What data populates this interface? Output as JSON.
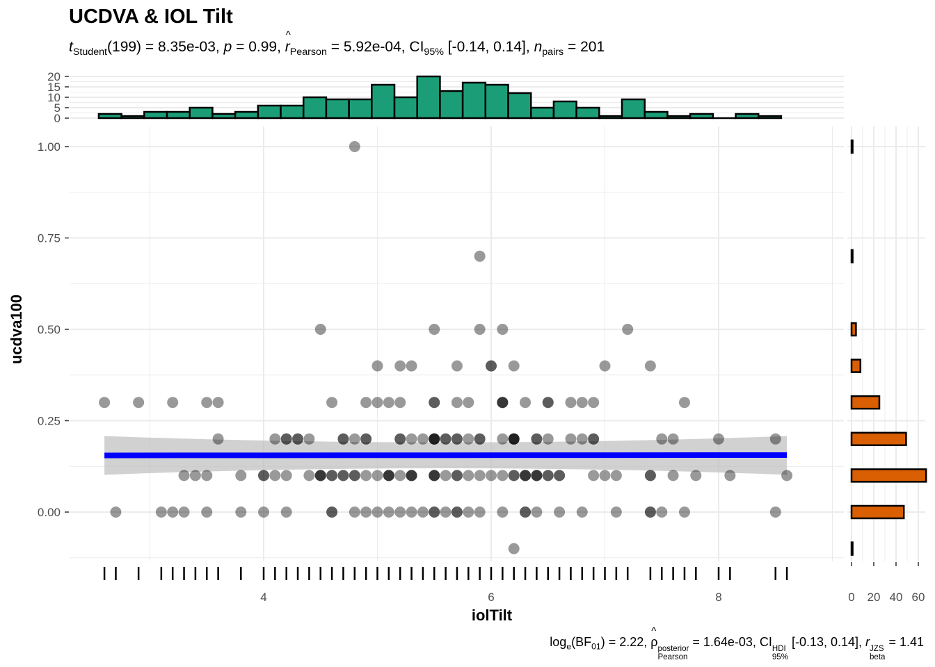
{
  "title": "UCDVA & IOL Tilt",
  "subtitle": {
    "t_letter": "t",
    "t_sub": "Student",
    "df": "(199)",
    "t_value": " = 8.35e-03, ",
    "p_letter": "p",
    "p_value": " = 0.99, ",
    "r_letter": "r",
    "r_sub": "Pearson",
    "r_value": " = 5.92e-04, ",
    "ci_text": "CI",
    "ci_sub": "95%",
    "ci_value": " [-0.14, 0.14], ",
    "n_letter": "n",
    "n_sub": "pairs",
    "n_value": " = 201"
  },
  "caption": {
    "log_text": "log",
    "log_sub": "e",
    "bf_open": "(BF",
    "bf_sub": "01",
    "bf_value": ") = 2.22, ",
    "rho": "ρ",
    "rho_sup": "posterior",
    "rho_sub": "Pearson",
    "rho_value": " = 1.64e-03, ",
    "ci_text": "CI",
    "ci_sup": "HDI",
    "ci_sub": "95%",
    "ci_value": " [-0.13, 0.14], ",
    "r_letter": "r",
    "r_sup": "JZS",
    "r_sub": "beta",
    "r_value": " = 1.41"
  },
  "colors": {
    "top_hist_fill": "#1B9E77",
    "right_hist_fill": "#D95F02",
    "points": "#000000",
    "smooth_line": "#0000FF",
    "ci_band": "#BEBEBE",
    "grid": "#EBEBEB"
  },
  "chart_data": [
    {
      "type": "scatter",
      "xlabel": "iolTilt",
      "ylabel": "ucdva100",
      "xlim": [
        2.5,
        9.0
      ],
      "ylim": [
        -0.13,
        1.05
      ],
      "x_ticks": [
        "4",
        "6",
        "8"
      ],
      "y_ticks": [
        "0.00",
        "0.25",
        "0.50",
        "0.75",
        "1.00"
      ],
      "grid": true,
      "point_alpha": 0.4,
      "smooth": {
        "method": "linear",
        "x_range": [
          2.6,
          8.6
        ],
        "y_start": 0.155,
        "y_end": 0.156,
        "ci_low_end": [
          0.102,
          0.102
        ],
        "ci_high_end": [
          0.208,
          0.208
        ]
      },
      "points": [
        [
          4.8,
          1.0
        ],
        [
          5.9,
          0.7
        ],
        [
          4.5,
          0.5
        ],
        [
          5.5,
          0.5
        ],
        [
          5.9,
          0.5
        ],
        [
          6.1,
          0.5
        ],
        [
          7.2,
          0.5
        ],
        [
          5.0,
          0.4
        ],
        [
          5.2,
          0.4
        ],
        [
          5.3,
          0.4
        ],
        [
          5.7,
          0.4
        ],
        [
          6.0,
          0.4
        ],
        [
          6.0,
          0.4
        ],
        [
          6.2,
          0.4
        ],
        [
          7.0,
          0.4
        ],
        [
          7.4,
          0.4
        ],
        [
          2.6,
          0.3
        ],
        [
          2.9,
          0.3
        ],
        [
          3.2,
          0.3
        ],
        [
          3.5,
          0.3
        ],
        [
          3.6,
          0.3
        ],
        [
          4.6,
          0.3
        ],
        [
          4.9,
          0.3
        ],
        [
          5.0,
          0.3
        ],
        [
          5.1,
          0.3
        ],
        [
          5.2,
          0.3
        ],
        [
          5.5,
          0.3
        ],
        [
          5.5,
          0.3
        ],
        [
          5.7,
          0.3
        ],
        [
          5.8,
          0.3
        ],
        [
          6.1,
          0.3
        ],
        [
          6.1,
          0.3
        ],
        [
          6.1,
          0.3
        ],
        [
          6.3,
          0.3
        ],
        [
          6.5,
          0.3
        ],
        [
          6.5,
          0.3
        ],
        [
          6.7,
          0.3
        ],
        [
          6.8,
          0.3
        ],
        [
          6.9,
          0.3
        ],
        [
          7.7,
          0.3
        ],
        [
          3.6,
          0.2
        ],
        [
          4.1,
          0.2
        ],
        [
          4.2,
          0.2
        ],
        [
          4.2,
          0.2
        ],
        [
          4.3,
          0.2
        ],
        [
          4.3,
          0.2
        ],
        [
          4.4,
          0.2
        ],
        [
          4.7,
          0.2
        ],
        [
          4.7,
          0.2
        ],
        [
          4.8,
          0.2
        ],
        [
          4.9,
          0.2
        ],
        [
          4.9,
          0.2
        ],
        [
          5.2,
          0.2
        ],
        [
          5.2,
          0.2
        ],
        [
          5.3,
          0.2
        ],
        [
          5.4,
          0.2
        ],
        [
          5.5,
          0.2
        ],
        [
          5.5,
          0.2
        ],
        [
          5.5,
          0.2
        ],
        [
          5.5,
          0.2
        ],
        [
          5.6,
          0.2
        ],
        [
          5.6,
          0.2
        ],
        [
          5.7,
          0.2
        ],
        [
          5.7,
          0.2
        ],
        [
          5.8,
          0.2
        ],
        [
          5.9,
          0.2
        ],
        [
          5.9,
          0.2
        ],
        [
          6.1,
          0.2
        ],
        [
          6.2,
          0.2
        ],
        [
          6.2,
          0.2
        ],
        [
          6.2,
          0.2
        ],
        [
          6.2,
          0.2
        ],
        [
          6.4,
          0.2
        ],
        [
          6.4,
          0.2
        ],
        [
          6.5,
          0.2
        ],
        [
          6.7,
          0.2
        ],
        [
          6.8,
          0.2
        ],
        [
          6.9,
          0.2
        ],
        [
          6.9,
          0.2
        ],
        [
          7.5,
          0.2
        ],
        [
          7.6,
          0.2
        ],
        [
          8.0,
          0.2
        ],
        [
          8.5,
          0.2
        ],
        [
          3.3,
          0.1
        ],
        [
          3.4,
          0.1
        ],
        [
          3.5,
          0.1
        ],
        [
          3.8,
          0.1
        ],
        [
          4.0,
          0.1
        ],
        [
          4.0,
          0.1
        ],
        [
          4.1,
          0.1
        ],
        [
          4.2,
          0.1
        ],
        [
          4.4,
          0.1
        ],
        [
          4.5,
          0.1
        ],
        [
          4.5,
          0.1
        ],
        [
          4.5,
          0.1
        ],
        [
          4.6,
          0.1
        ],
        [
          4.6,
          0.1
        ],
        [
          4.7,
          0.1
        ],
        [
          4.7,
          0.1
        ],
        [
          4.8,
          0.1
        ],
        [
          4.8,
          0.1
        ],
        [
          4.9,
          0.1
        ],
        [
          5.0,
          0.1
        ],
        [
          5.1,
          0.1
        ],
        [
          5.1,
          0.1
        ],
        [
          5.1,
          0.1
        ],
        [
          5.2,
          0.1
        ],
        [
          5.3,
          0.1
        ],
        [
          5.3,
          0.1
        ],
        [
          5.3,
          0.1
        ],
        [
          5.5,
          0.1
        ],
        [
          5.5,
          0.1
        ],
        [
          5.5,
          0.1
        ],
        [
          5.6,
          0.1
        ],
        [
          5.7,
          0.1
        ],
        [
          5.7,
          0.1
        ],
        [
          5.8,
          0.1
        ],
        [
          5.9,
          0.1
        ],
        [
          6.0,
          0.1
        ],
        [
          6.1,
          0.1
        ],
        [
          6.2,
          0.1
        ],
        [
          6.2,
          0.1
        ],
        [
          6.3,
          0.1
        ],
        [
          6.3,
          0.1
        ],
        [
          6.3,
          0.1
        ],
        [
          6.4,
          0.1
        ],
        [
          6.4,
          0.1
        ],
        [
          6.4,
          0.1
        ],
        [
          6.5,
          0.1
        ],
        [
          6.5,
          0.1
        ],
        [
          6.6,
          0.1
        ],
        [
          6.6,
          0.1
        ],
        [
          6.9,
          0.1
        ],
        [
          7.0,
          0.1
        ],
        [
          7.1,
          0.1
        ],
        [
          7.4,
          0.1
        ],
        [
          7.4,
          0.1
        ],
        [
          7.6,
          0.1
        ],
        [
          7.8,
          0.1
        ],
        [
          8.1,
          0.1
        ],
        [
          8.6,
          0.1
        ],
        [
          2.7,
          0.0
        ],
        [
          3.1,
          0.0
        ],
        [
          3.2,
          0.0
        ],
        [
          3.3,
          0.0
        ],
        [
          3.5,
          0.0
        ],
        [
          3.8,
          0.0
        ],
        [
          4.0,
          0.0
        ],
        [
          4.2,
          0.0
        ],
        [
          4.6,
          0.0
        ],
        [
          4.6,
          0.0
        ],
        [
          4.8,
          0.0
        ],
        [
          4.9,
          0.0
        ],
        [
          5.0,
          0.0
        ],
        [
          5.1,
          0.0
        ],
        [
          5.2,
          0.0
        ],
        [
          5.3,
          0.0
        ],
        [
          5.4,
          0.0
        ],
        [
          5.5,
          0.0
        ],
        [
          5.5,
          0.0
        ],
        [
          5.6,
          0.0
        ],
        [
          5.7,
          0.0
        ],
        [
          5.7,
          0.0
        ],
        [
          5.8,
          0.0
        ],
        [
          5.9,
          0.0
        ],
        [
          6.1,
          0.0
        ],
        [
          6.3,
          0.0
        ],
        [
          6.3,
          0.0
        ],
        [
          6.4,
          0.0
        ],
        [
          6.6,
          0.0
        ],
        [
          6.8,
          0.0
        ],
        [
          7.1,
          0.0
        ],
        [
          7.4,
          0.0
        ],
        [
          7.4,
          0.0
        ],
        [
          7.5,
          0.0
        ],
        [
          7.7,
          0.0
        ],
        [
          8.5,
          0.0
        ],
        [
          6.2,
          -0.1
        ]
      ]
    },
    {
      "type": "bar",
      "orientation": "vertical",
      "role": "marginal histogram of iolTilt",
      "bin_start": 2.55,
      "bin_width": 0.2,
      "y_ticks": [
        "0",
        "5",
        "10",
        "15",
        "20"
      ],
      "ylim": [
        0,
        20
      ],
      "values": [
        2,
        1,
        3,
        3,
        5,
        2,
        3,
        6,
        6,
        10,
        9,
        9,
        16,
        10,
        20,
        13,
        17,
        16,
        12,
        5,
        8,
        5,
        1,
        9,
        3,
        1,
        2,
        0,
        2,
        1
      ]
    },
    {
      "type": "bar",
      "orientation": "horizontal",
      "role": "marginal histogram of ucdva100",
      "categories": [
        -0.1,
        0.0,
        0.1,
        0.2,
        0.3,
        0.4,
        0.5,
        0.7,
        1.0
      ],
      "values": [
        1,
        47,
        67,
        49,
        25,
        8,
        4,
        1,
        1
      ],
      "x_ticks": [
        "0",
        "20",
        "40",
        "60"
      ],
      "xlim": [
        0,
        67
      ]
    }
  ]
}
